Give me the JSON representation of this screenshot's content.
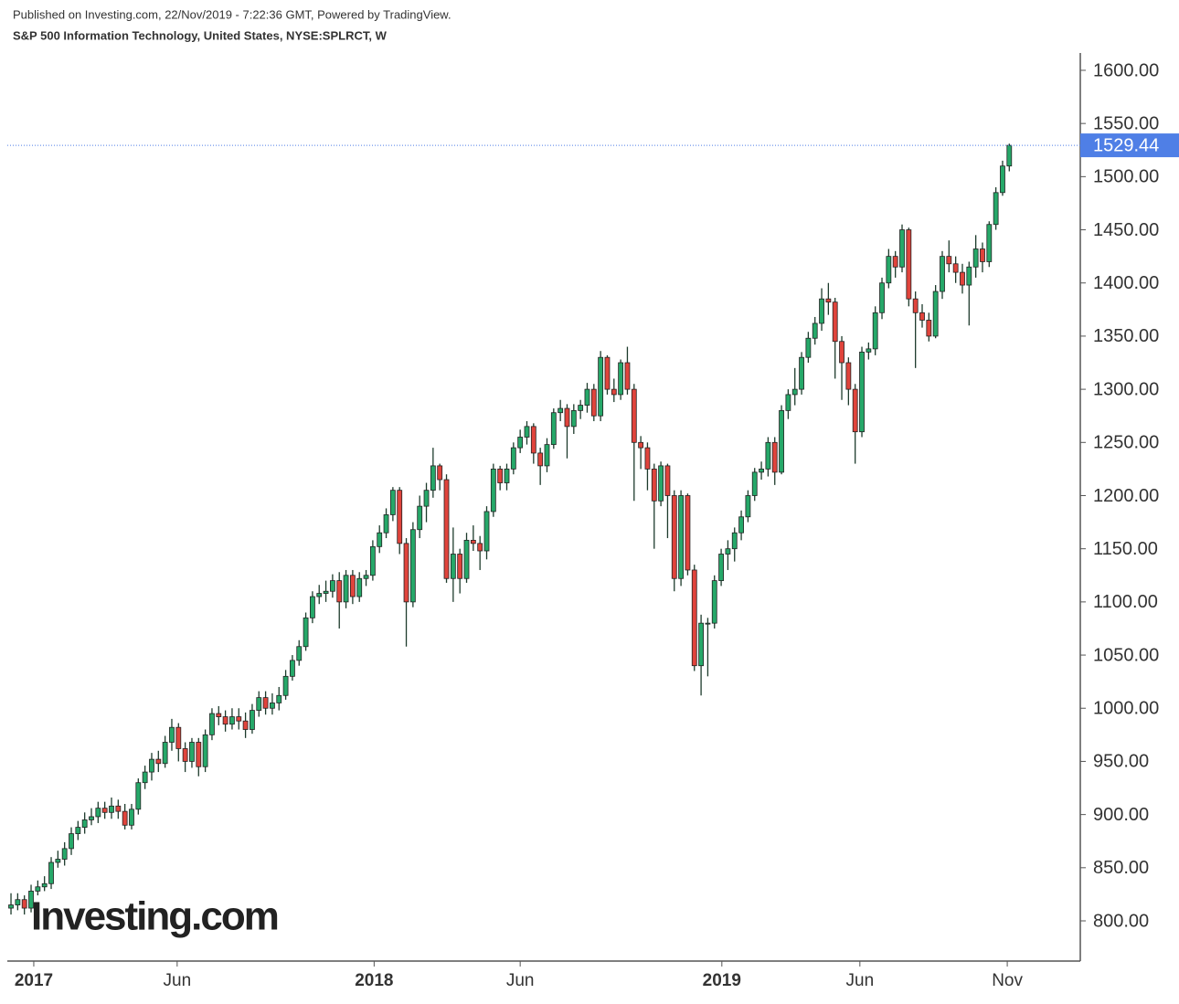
{
  "chart_data": {
    "type": "candlestick",
    "header": "Published on Investing.com, 22/Nov/2019 - 7:22:36 GMT, Powered by TradingView.",
    "title": "S&P 500 Information Technology, United States, NYSE:SPLRCT, W",
    "watermark": "Investing.com",
    "up_color": "#26a869",
    "down_color": "#e0443c",
    "last_color": "#4f7fe6",
    "xlim": [
      -0.55,
      159.6
    ],
    "xticks": [
      {
        "value": 3.4,
        "label": "2017"
      },
      {
        "value": 24.8,
        "label": "Jun"
      },
      {
        "value": 54.2,
        "label": "2018"
      },
      {
        "value": 76,
        "label": "Jun"
      },
      {
        "value": 106.1,
        "label": "2019"
      },
      {
        "value": 126.7,
        "label": "Jun"
      },
      {
        "value": 148.7,
        "label": "Nov"
      }
    ],
    "ylim": [
      762.2,
      1616.3
    ],
    "yticks": [
      {
        "value": 800,
        "label": "800.00"
      },
      {
        "value": 850,
        "label": "850.00"
      },
      {
        "value": 900,
        "label": "900.00"
      },
      {
        "value": 950,
        "label": "950.00"
      },
      {
        "value": 1000,
        "label": "1000.00"
      },
      {
        "value": 1050,
        "label": "1050.00"
      },
      {
        "value": 1100,
        "label": "1100.00"
      },
      {
        "value": 1150,
        "label": "1150.00"
      },
      {
        "value": 1200,
        "label": "1200.00"
      },
      {
        "value": 1250,
        "label": "1250.00"
      },
      {
        "value": 1300,
        "label": "1300.00"
      },
      {
        "value": 1350,
        "label": "1350.00"
      },
      {
        "value": 1400,
        "label": "1400.00"
      },
      {
        "value": 1450,
        "label": "1450.00"
      },
      {
        "value": 1500,
        "label": "1500.00"
      },
      {
        "value": 1550,
        "label": "1550.00"
      },
      {
        "value": 1600,
        "label": "1600.00"
      }
    ],
    "open": [
      812,
      815,
      820,
      812,
      828,
      832,
      835,
      855,
      858,
      868,
      882,
      888,
      895,
      898,
      906,
      902,
      908,
      903,
      890,
      905,
      930,
      940,
      952,
      948,
      968,
      982,
      962,
      950,
      968,
      945,
      975,
      995,
      992,
      985,
      992,
      988,
      980,
      998,
      1010,
      1000,
      1005,
      1012,
      1030,
      1045,
      1058,
      1085,
      1105,
      1108,
      1110,
      1120,
      1100,
      1125,
      1105,
      1122,
      1125,
      1152,
      1165,
      1182,
      1205,
      1155,
      1100,
      1168,
      1190,
      1205,
      1228,
      1215,
      1122,
      1145,
      1122,
      1158,
      1155,
      1148,
      1185,
      1225,
      1212,
      1225,
      1245,
      1255,
      1265,
      1240,
      1228,
      1248,
      1278,
      1282,
      1265,
      1280,
      1285,
      1300,
      1275,
      1330,
      1300,
      1295,
      1325,
      1300,
      1250,
      1245,
      1225,
      1195,
      1228,
      1200,
      1122,
      1200,
      1130,
      1040,
      1080,
      1080,
      1120,
      1145,
      1150,
      1165,
      1180,
      1200,
      1222,
      1225,
      1250,
      1222,
      1280,
      1295,
      1300,
      1330,
      1348,
      1362,
      1385,
      1382,
      1345,
      1325,
      1300,
      1260,
      1335,
      1338,
      1372,
      1400,
      1425,
      1415,
      1450,
      1385,
      1372,
      1365,
      1350,
      1392,
      1425,
      1418,
      1410,
      1398,
      1415,
      1432,
      1420,
      1455,
      1485,
      1510
    ],
    "high": [
      826,
      826,
      824,
      834,
      838,
      842,
      860,
      866,
      874,
      888,
      894,
      902,
      906,
      912,
      912,
      916,
      914,
      910,
      910,
      934,
      946,
      958,
      960,
      974,
      990,
      986,
      968,
      972,
      972,
      980,
      1000,
      1002,
      998,
      1000,
      1000,
      996,
      1004,
      1016,
      1016,
      1014,
      1020,
      1036,
      1050,
      1064,
      1090,
      1110,
      1116,
      1120,
      1126,
      1128,
      1130,
      1130,
      1128,
      1130,
      1158,
      1172,
      1188,
      1208,
      1208,
      1160,
      1175,
      1200,
      1212,
      1245,
      1230,
      1220,
      1170,
      1150,
      1165,
      1172,
      1162,
      1190,
      1230,
      1228,
      1230,
      1250,
      1262,
      1270,
      1268,
      1245,
      1254,
      1282,
      1290,
      1286,
      1286,
      1290,
      1306,
      1305,
      1336,
      1332,
      1310,
      1328,
      1340,
      1305,
      1256,
      1250,
      1230,
      1232,
      1230,
      1205,
      1205,
      1202,
      1135,
      1088,
      1085,
      1125,
      1150,
      1158,
      1170,
      1186,
      1205,
      1226,
      1232,
      1255,
      1255,
      1285,
      1300,
      1320,
      1335,
      1354,
      1368,
      1395,
      1400,
      1386,
      1350,
      1330,
      1305,
      1340,
      1344,
      1378,
      1405,
      1432,
      1430,
      1455,
      1452,
      1392,
      1380,
      1372,
      1398,
      1430,
      1440,
      1425,
      1418,
      1420,
      1445,
      1438,
      1458,
      1490,
      1515,
      1531
    ],
    "low": [
      806,
      810,
      806,
      808,
      824,
      828,
      830,
      850,
      852,
      862,
      876,
      882,
      890,
      892,
      896,
      896,
      896,
      886,
      886,
      900,
      924,
      932,
      940,
      944,
      960,
      950,
      940,
      944,
      936,
      940,
      970,
      984,
      978,
      980,
      980,
      972,
      976,
      992,
      994,
      994,
      998,
      1008,
      1026,
      1040,
      1054,
      1080,
      1098,
      1100,
      1104,
      1075,
      1094,
      1098,
      1100,
      1115,
      1120,
      1146,
      1160,
      1176,
      1145,
      1058,
      1095,
      1160,
      1175,
      1198,
      1205,
      1118,
      1100,
      1108,
      1118,
      1148,
      1130,
      1140,
      1180,
      1205,
      1205,
      1220,
      1240,
      1248,
      1230,
      1210,
      1222,
      1244,
      1270,
      1235,
      1258,
      1272,
      1278,
      1270,
      1270,
      1295,
      1288,
      1290,
      1295,
      1195,
      1225,
      1205,
      1150,
      1190,
      1160,
      1110,
      1115,
      1125,
      1035,
      1012,
      1030,
      1075,
      1115,
      1130,
      1138,
      1158,
      1175,
      1195,
      1215,
      1218,
      1210,
      1220,
      1272,
      1285,
      1295,
      1325,
      1342,
      1355,
      1370,
      1310,
      1290,
      1285,
      1230,
      1255,
      1328,
      1332,
      1366,
      1395,
      1405,
      1410,
      1378,
      1320,
      1358,
      1345,
      1348,
      1385,
      1410,
      1400,
      1390,
      1360,
      1405,
      1410,
      1415,
      1450,
      1482,
      1505
    ],
    "close": [
      815,
      820,
      812,
      828,
      832,
      835,
      855,
      858,
      868,
      882,
      888,
      895,
      898,
      906,
      902,
      908,
      903,
      890,
      905,
      930,
      940,
      952,
      948,
      968,
      982,
      962,
      950,
      968,
      945,
      975,
      995,
      992,
      985,
      992,
      988,
      980,
      998,
      1010,
      1000,
      1005,
      1012,
      1030,
      1045,
      1058,
      1085,
      1105,
      1108,
      1110,
      1120,
      1100,
      1125,
      1105,
      1122,
      1125,
      1152,
      1165,
      1182,
      1205,
      1155,
      1100,
      1168,
      1190,
      1205,
      1228,
      1215,
      1122,
      1145,
      1122,
      1158,
      1155,
      1148,
      1185,
      1225,
      1212,
      1225,
      1245,
      1255,
      1265,
      1240,
      1228,
      1248,
      1278,
      1282,
      1265,
      1280,
      1285,
      1300,
      1275,
      1330,
      1300,
      1295,
      1325,
      1300,
      1250,
      1245,
      1225,
      1195,
      1228,
      1200,
      1122,
      1200,
      1130,
      1040,
      1080,
      1080,
      1120,
      1145,
      1150,
      1165,
      1180,
      1200,
      1222,
      1225,
      1250,
      1222,
      1280,
      1295,
      1300,
      1330,
      1348,
      1362,
      1385,
      1382,
      1345,
      1325,
      1300,
      1260,
      1335,
      1338,
      1372,
      1400,
      1425,
      1415,
      1450,
      1385,
      1372,
      1365,
      1350,
      1392,
      1425,
      1418,
      1410,
      1398,
      1415,
      1432,
      1420,
      1455,
      1485,
      1510,
      1529.44
    ]
  }
}
